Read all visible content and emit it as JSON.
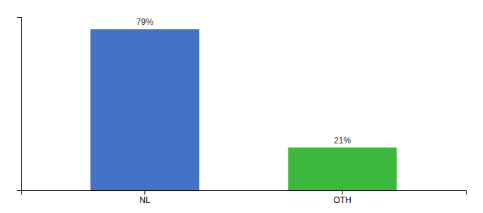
{
  "chart_data": {
    "type": "bar",
    "categories": [
      "NL",
      "OTH"
    ],
    "values": [
      79,
      21
    ],
    "value_labels": [
      "79%",
      "21%"
    ],
    "colors": [
      "#4472c4",
      "#3cb83c"
    ],
    "ylim": [
      0,
      85
    ],
    "yticks": [],
    "data_labels": true,
    "tick_labels": "x",
    "grid": false
  }
}
